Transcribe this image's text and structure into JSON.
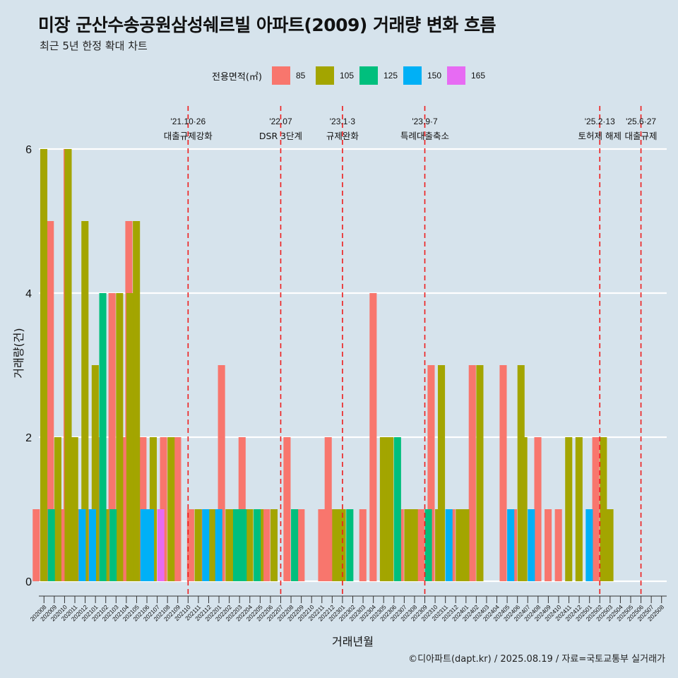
{
  "title": "미장 군산수송공원삼성쉐르빌 아파트(2009) 거래량 변화 흐름",
  "subtitle": "최근 5년 한정 확대 차트",
  "caption": "©디아파트(dapt.kr) / 2025.08.19 / 자료=국토교통부 실거래가",
  "legend": {
    "title": "전용면적(㎡)",
    "items": [
      {
        "label": "85",
        "color": "#f8766d"
      },
      {
        "label": "105",
        "color": "#a3a500"
      },
      {
        "label": "125",
        "color": "#00bf7d"
      },
      {
        "label": "150",
        "color": "#00b0f6"
      },
      {
        "label": "165",
        "color": "#e76bf3"
      }
    ]
  },
  "chart_data": {
    "type": "bar",
    "xlabel": "거래년월",
    "ylabel": "거래량(건)",
    "ylim": [
      0,
      6
    ],
    "yticks": [
      0,
      2,
      4,
      6
    ],
    "grid": true,
    "legend_position": "top",
    "categories": [
      "202008",
      "202009",
      "202010",
      "202011",
      "202012",
      "202101",
      "202102",
      "202103",
      "202104",
      "202105",
      "202106",
      "202107",
      "202108",
      "202109",
      "202110",
      "202111",
      "202112",
      "202201",
      "202202",
      "202203",
      "202204",
      "202205",
      "202206",
      "202207",
      "202208",
      "202209",
      "202210",
      "202211",
      "202212",
      "202301",
      "202302",
      "202303",
      "202304",
      "202305",
      "202306",
      "202307",
      "202308",
      "202309",
      "202310",
      "202311",
      "202312",
      "202401",
      "202402",
      "202403",
      "202404",
      "202405",
      "202406",
      "202407",
      "202408",
      "202409",
      "202410",
      "202411",
      "202412",
      "202501",
      "202502",
      "202503",
      "202504",
      "202505",
      "202506",
      "202507",
      "202508"
    ],
    "series": [
      {
        "name": "85",
        "color": "#f8766d",
        "values": [
          1,
          5,
          1,
          6,
          1,
          1,
          2,
          4,
          2,
          5,
          2,
          0,
          2,
          2,
          0,
          1,
          1,
          0,
          3,
          0,
          2,
          0,
          1,
          0,
          2,
          1,
          0,
          1,
          2,
          1,
          0,
          1,
          4,
          0,
          0,
          1,
          0,
          1,
          3,
          0,
          1,
          0,
          3,
          0,
          0,
          3,
          1,
          0,
          2,
          1,
          1,
          0,
          0,
          0,
          2,
          0,
          0,
          0,
          0,
          0,
          0
        ]
      },
      {
        "name": "105",
        "color": "#a3a500",
        "values": [
          6,
          2,
          6,
          2,
          5,
          3,
          1,
          4,
          4,
          5,
          0,
          2,
          2,
          0,
          0,
          1,
          1,
          0,
          1,
          1,
          1,
          1,
          1,
          0,
          0,
          0,
          0,
          0,
          1,
          1,
          0,
          0,
          0,
          2,
          2,
          1,
          1,
          0,
          1,
          3,
          1,
          1,
          3,
          0,
          0,
          0,
          3,
          2,
          0,
          0,
          0,
          2,
          2,
          0,
          2,
          1,
          0,
          0,
          0,
          0,
          0
        ]
      },
      {
        "name": "125",
        "color": "#00bf7d",
        "values": [
          1,
          0,
          0,
          0,
          0,
          4,
          1,
          0,
          0,
          0,
          0,
          0,
          0,
          0,
          0,
          0,
          0,
          0,
          1,
          1,
          1,
          0,
          0,
          0,
          1,
          0,
          0,
          0,
          0,
          1,
          0,
          0,
          0,
          0,
          2,
          0,
          0,
          1,
          0,
          0,
          0,
          0,
          0,
          0,
          0,
          0,
          0,
          0,
          0,
          0,
          0,
          0,
          0,
          0,
          0,
          0,
          0,
          0,
          0,
          0,
          0
        ]
      },
      {
        "name": "150",
        "color": "#00b0f6",
        "values": [
          0,
          0,
          0,
          1,
          1,
          0,
          0,
          0,
          0,
          1,
          1,
          0,
          0,
          0,
          0,
          1,
          0,
          1,
          0,
          0,
          0,
          0,
          0,
          0,
          0,
          0,
          0,
          0,
          0,
          0,
          0,
          0,
          0,
          0,
          0,
          0,
          0,
          0,
          0,
          1,
          0,
          0,
          0,
          0,
          0,
          1,
          0,
          1,
          0,
          0,
          0,
          0,
          0,
          1,
          0,
          0,
          0,
          0,
          0,
          0,
          0
        ]
      },
      {
        "name": "165",
        "color": "#e76bf3",
        "values": [
          0,
          0,
          0,
          0,
          0,
          0,
          0,
          0,
          0,
          0,
          0,
          1,
          0,
          0,
          0,
          0,
          0,
          0,
          0,
          0,
          0,
          0,
          0,
          0,
          0,
          0,
          0,
          0,
          0,
          0,
          0,
          0,
          0,
          0,
          0,
          0,
          0,
          0,
          0,
          0,
          0,
          0,
          0,
          0,
          0,
          0,
          0,
          0,
          0,
          0,
          0,
          0,
          0,
          0,
          0,
          0,
          0,
          0,
          0,
          0,
          0
        ]
      }
    ],
    "events": [
      {
        "month": "202110",
        "date_label": "'21.10·26",
        "text": "대출규제강화"
      },
      {
        "month": "202207",
        "date_label": "'22.07",
        "text": "DSR 3단계"
      },
      {
        "month": "202301",
        "date_label": "'23.1·3",
        "text": "규제완화"
      },
      {
        "month": "202309",
        "date_label": "'23.9·7",
        "text": "특례대출축소"
      },
      {
        "month": "202502",
        "date_label": "'25.2·13",
        "text": "토허제 해제"
      },
      {
        "month": "202506",
        "date_label": "'25.6·27",
        "text": "대출규제"
      }
    ]
  }
}
